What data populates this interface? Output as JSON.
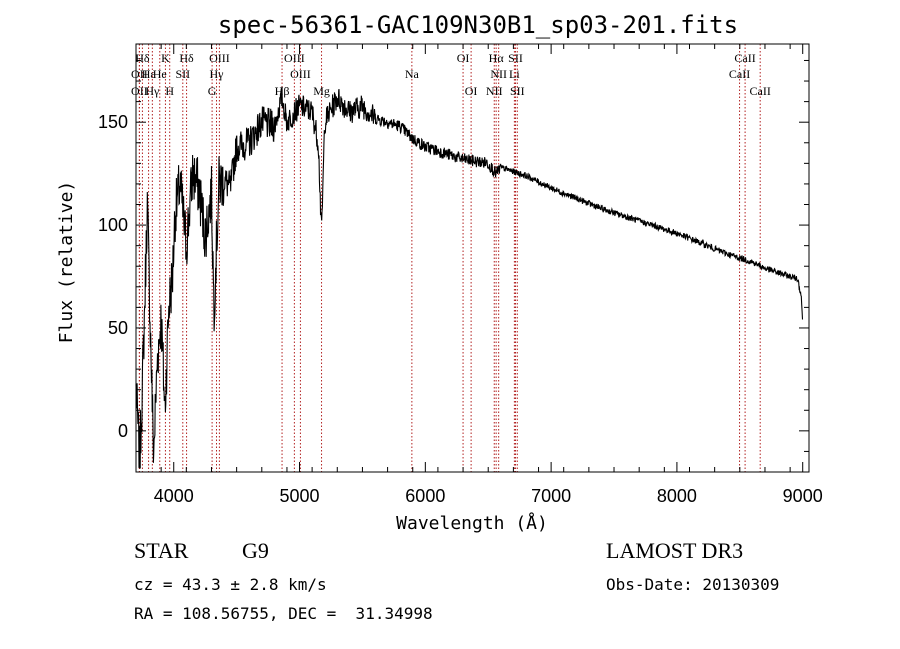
{
  "chart_data": {
    "type": "line",
    "title": "spec-56361-GAC109N30B1_sp03-201.fits",
    "xlabel": "Wavelength (Å)",
    "ylabel": "Flux (relative)",
    "xlim": [
      3700,
      9050
    ],
    "ylim": [
      -20,
      188
    ],
    "xticks": [
      4000,
      5000,
      6000,
      7000,
      8000,
      9000
    ],
    "yticks": [
      0,
      50,
      100,
      150
    ],
    "line_color": "#000000",
    "marker_color": "#b22222",
    "spectrum_anchors": [
      [
        3700,
        20
      ],
      [
        3730,
        -15
      ],
      [
        3760,
        40
      ],
      [
        3790,
        110
      ],
      [
        3810,
        60
      ],
      [
        3840,
        -12
      ],
      [
        3870,
        35
      ],
      [
        3900,
        55
      ],
      [
        3930,
        10
      ],
      [
        3960,
        60
      ],
      [
        3990,
        75
      ],
      [
        4010,
        105
      ],
      [
        4050,
        120
      ],
      [
        4100,
        90
      ],
      [
        4150,
        125
      ],
      [
        4200,
        118
      ],
      [
        4250,
        95
      ],
      [
        4300,
        115
      ],
      [
        4320,
        60
      ],
      [
        4360,
        120
      ],
      [
        4400,
        122
      ],
      [
        4450,
        118
      ],
      [
        4500,
        138
      ],
      [
        4600,
        140
      ],
      [
        4700,
        150
      ],
      [
        4800,
        148
      ],
      [
        4860,
        162
      ],
      [
        4900,
        150
      ],
      [
        5000,
        158
      ],
      [
        5100,
        155
      ],
      [
        5150,
        140
      ],
      [
        5175,
        95
      ],
      [
        5200,
        150
      ],
      [
        5300,
        162
      ],
      [
        5400,
        155
      ],
      [
        5500,
        158
      ],
      [
        5600,
        152
      ],
      [
        5700,
        150
      ],
      [
        5800,
        148
      ],
      [
        5900,
        142
      ],
      [
        6000,
        138
      ],
      [
        6100,
        136
      ],
      [
        6200,
        134
      ],
      [
        6300,
        132
      ],
      [
        6400,
        131
      ],
      [
        6500,
        130
      ],
      [
        6563,
        125
      ],
      [
        6600,
        128
      ],
      [
        6700,
        126
      ],
      [
        6800,
        124
      ],
      [
        6900,
        121
      ],
      [
        7000,
        118
      ],
      [
        7200,
        113
      ],
      [
        7400,
        108
      ],
      [
        7600,
        104
      ],
      [
        7800,
        100
      ],
      [
        8000,
        96
      ],
      [
        8200,
        91
      ],
      [
        8400,
        86
      ],
      [
        8500,
        84
      ],
      [
        8600,
        82
      ],
      [
        8700,
        79
      ],
      [
        8800,
        77
      ],
      [
        8900,
        75
      ],
      [
        8960,
        74
      ],
      [
        8990,
        65
      ],
      [
        9000,
        50
      ]
    ],
    "lines": [
      {
        "name": "Hδ",
        "wave": 3751,
        "row": 1
      },
      {
        "name": "OII",
        "wave": 3727,
        "row": 2
      },
      {
        "name": "OII",
        "wave": 3727,
        "row": 3
      },
      {
        "name": "Hε",
        "wave": 3800,
        "row": 2
      },
      {
        "name": "Hγ",
        "wave": 3830,
        "row": 3
      },
      {
        "name": "K",
        "wave": 3934,
        "row": 1
      },
      {
        "name": "He",
        "wave": 3889,
        "row": 2
      },
      {
        "name": "H",
        "wave": 3968,
        "row": 3
      },
      {
        "name": "SII",
        "wave": 4072,
        "row": 2
      },
      {
        "name": "Hδ",
        "wave": 4102,
        "row": 1
      },
      {
        "name": "OIII",
        "wave": 4363,
        "row": 1
      },
      {
        "name": "Hγ",
        "wave": 4340,
        "row": 2
      },
      {
        "name": "G",
        "wave": 4305,
        "row": 3
      },
      {
        "name": "OIII",
        "wave": 4959,
        "row": 1
      },
      {
        "name": "OIII",
        "wave": 5007,
        "row": 2
      },
      {
        "name": "Hβ",
        "wave": 4861,
        "row": 3
      },
      {
        "name": "Mg",
        "wave": 5175,
        "row": 3
      },
      {
        "name": "Na",
        "wave": 5893,
        "row": 2
      },
      {
        "name": "OI",
        "wave": 6300,
        "row": 1
      },
      {
        "name": "OI",
        "wave": 6364,
        "row": 3
      },
      {
        "name": "Hα",
        "wave": 6563,
        "row": 1
      },
      {
        "name": "NII",
        "wave": 6583,
        "row": 2
      },
      {
        "name": "NII",
        "wave": 6548,
        "row": 3
      },
      {
        "name": "SII",
        "wave": 6717,
        "row": 1
      },
      {
        "name": "Li",
        "wave": 6708,
        "row": 2
      },
      {
        "name": "SII",
        "wave": 6731,
        "row": 3
      },
      {
        "name": "CaII",
        "wave": 8542,
        "row": 1
      },
      {
        "name": "CaII",
        "wave": 8498,
        "row": 2
      },
      {
        "name": "CaII",
        "wave": 8662,
        "row": 3
      }
    ]
  },
  "info": {
    "object_class": "STAR",
    "subclass": "G9",
    "redshift": "cz = 43.3 ± 2.8 km/s",
    "coords": "RA = 108.56755, DEC =  31.34998",
    "survey": "LAMOST DR3",
    "obs_date": "Obs-Date: 20130309"
  }
}
